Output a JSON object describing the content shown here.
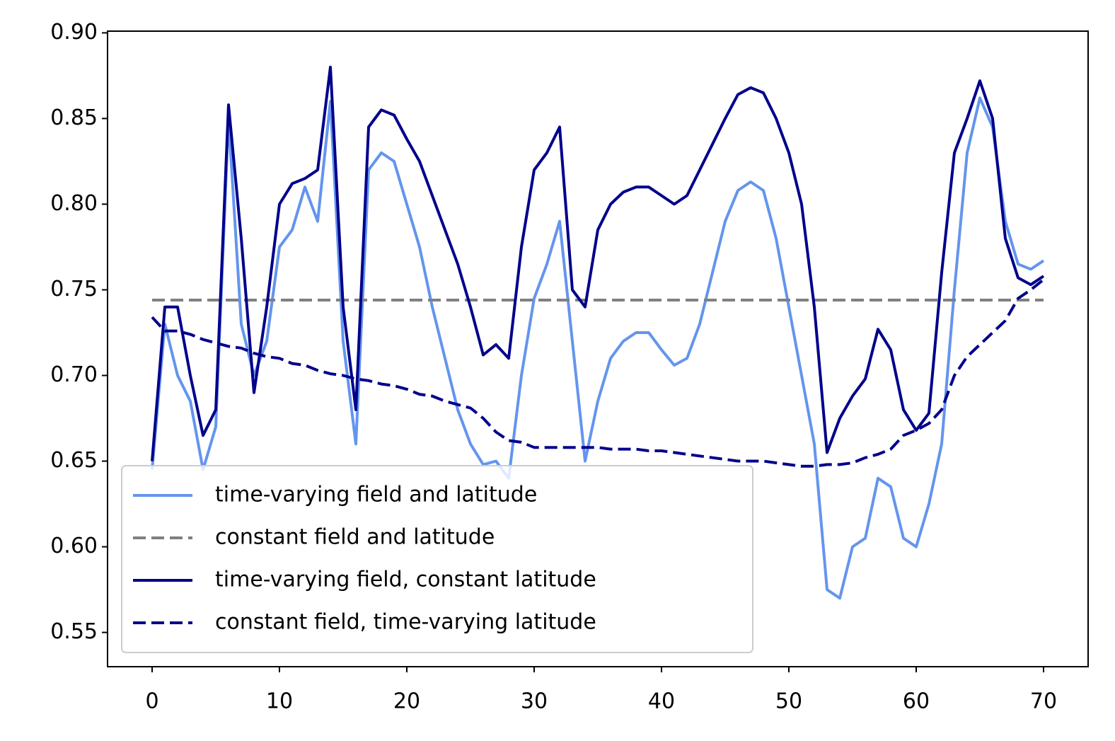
{
  "chart_data": {
    "type": "line",
    "xlim": [
      -3.5,
      73.5
    ],
    "ylim": [
      0.53,
      0.901
    ],
    "xticks": [
      0,
      10,
      20,
      30,
      40,
      50,
      60,
      70
    ],
    "yticks": [
      0.55,
      {
        "value": 0.6,
        "label": "0.60"
      },
      0.65,
      {
        "value": 0.7,
        "label": "0.70"
      },
      0.75,
      {
        "value": 0.8,
        "label": "0.80"
      },
      0.85,
      {
        "value": 0.9,
        "label": "0.90"
      }
    ],
    "legend": "lower left",
    "series": [
      {
        "name": "time-varying field and latitude",
        "color": "#6495ed",
        "dash": false,
        "x": [
          0,
          1,
          2,
          3,
          4,
          5,
          6,
          7,
          8,
          9,
          10,
          11,
          12,
          13,
          14,
          15,
          16,
          17,
          18,
          19,
          20,
          21,
          22,
          23,
          24,
          25,
          26,
          27,
          28,
          29,
          30,
          31,
          32,
          33,
          34,
          35,
          36,
          37,
          38,
          39,
          40,
          41,
          42,
          43,
          44,
          45,
          46,
          47,
          48,
          49,
          50,
          51,
          52,
          53,
          54,
          55,
          56,
          57,
          58,
          59,
          60,
          61,
          62,
          63,
          64,
          65,
          66,
          67,
          68,
          69,
          70
        ],
        "values": [
          0.645,
          0.73,
          0.7,
          0.685,
          0.645,
          0.67,
          0.85,
          0.73,
          0.7,
          0.72,
          0.775,
          0.785,
          0.81,
          0.79,
          0.86,
          0.72,
          0.66,
          0.82,
          0.83,
          0.825,
          0.8,
          0.775,
          0.74,
          0.71,
          0.68,
          0.66,
          0.648,
          0.65,
          0.64,
          0.7,
          0.745,
          0.765,
          0.79,
          0.72,
          0.65,
          0.685,
          0.71,
          0.72,
          0.725,
          0.725,
          0.715,
          0.706,
          0.71,
          0.73,
          0.76,
          0.79,
          0.808,
          0.813,
          0.808,
          0.78,
          0.74,
          0.7,
          0.66,
          0.575,
          0.57,
          0.6,
          0.605,
          0.64,
          0.635,
          0.605,
          0.6,
          0.625,
          0.66,
          0.75,
          0.83,
          0.862,
          0.845,
          0.79,
          0.765,
          0.762,
          0.767
        ]
      },
      {
        "name": "constant field and latitude",
        "color": "#808080",
        "dash": true,
        "x": [
          0,
          70
        ],
        "values": [
          0.744,
          0.744
        ]
      },
      {
        "name": "time-varying field, constant latitude",
        "color": "#00008b",
        "dash": false,
        "x": [
          0,
          1,
          2,
          3,
          4,
          5,
          6,
          7,
          8,
          9,
          10,
          11,
          12,
          13,
          14,
          15,
          16,
          17,
          18,
          19,
          20,
          21,
          22,
          23,
          24,
          25,
          26,
          27,
          28,
          29,
          30,
          31,
          32,
          33,
          34,
          35,
          36,
          37,
          38,
          39,
          40,
          41,
          42,
          43,
          44,
          45,
          46,
          47,
          48,
          49,
          50,
          51,
          52,
          53,
          54,
          55,
          56,
          57,
          58,
          59,
          60,
          61,
          62,
          63,
          64,
          65,
          66,
          67,
          68,
          69,
          70
        ],
        "values": [
          0.65,
          0.74,
          0.74,
          0.7,
          0.665,
          0.68,
          0.858,
          0.78,
          0.69,
          0.74,
          0.8,
          0.812,
          0.815,
          0.82,
          0.88,
          0.74,
          0.68,
          0.845,
          0.855,
          0.852,
          0.838,
          0.825,
          0.805,
          0.785,
          0.765,
          0.74,
          0.712,
          0.718,
          0.71,
          0.775,
          0.82,
          0.83,
          0.845,
          0.75,
          0.74,
          0.785,
          0.8,
          0.807,
          0.81,
          0.81,
          0.805,
          0.8,
          0.805,
          0.82,
          0.835,
          0.85,
          0.864,
          0.868,
          0.865,
          0.85,
          0.83,
          0.8,
          0.74,
          0.655,
          0.675,
          0.688,
          0.698,
          0.727,
          0.715,
          0.68,
          0.668,
          0.678,
          0.76,
          0.83,
          0.85,
          0.872,
          0.85,
          0.78,
          0.757,
          0.753,
          0.758
        ]
      },
      {
        "name": "constant field, time-varying latitude",
        "color": "#00008b",
        "dash": true,
        "x": [
          0,
          1,
          2,
          3,
          4,
          5,
          6,
          7,
          8,
          9,
          10,
          11,
          12,
          13,
          14,
          15,
          16,
          17,
          18,
          19,
          20,
          21,
          22,
          23,
          24,
          25,
          26,
          27,
          28,
          29,
          30,
          31,
          32,
          33,
          34,
          35,
          36,
          37,
          38,
          39,
          40,
          41,
          42,
          43,
          44,
          45,
          46,
          47,
          48,
          49,
          50,
          51,
          52,
          53,
          54,
          55,
          56,
          57,
          58,
          59,
          60,
          61,
          62,
          63,
          64,
          65,
          66,
          67,
          68,
          69,
          70
        ],
        "values": [
          0.734,
          0.726,
          0.726,
          0.724,
          0.721,
          0.719,
          0.717,
          0.716,
          0.713,
          0.711,
          0.71,
          0.707,
          0.706,
          0.703,
          0.701,
          0.7,
          0.698,
          0.697,
          0.695,
          0.694,
          0.692,
          0.689,
          0.688,
          0.685,
          0.683,
          0.681,
          0.675,
          0.667,
          0.662,
          0.661,
          0.658,
          0.658,
          0.658,
          0.658,
          0.658,
          0.658,
          0.657,
          0.657,
          0.657,
          0.656,
          0.656,
          0.655,
          0.654,
          0.653,
          0.652,
          0.651,
          0.65,
          0.65,
          0.65,
          0.649,
          0.648,
          0.647,
          0.647,
          0.648,
          0.648,
          0.649,
          0.652,
          0.654,
          0.657,
          0.665,
          0.668,
          0.672,
          0.68,
          0.7,
          0.711,
          0.718,
          0.725,
          0.732,
          0.745,
          0.75,
          0.756
        ]
      }
    ]
  }
}
